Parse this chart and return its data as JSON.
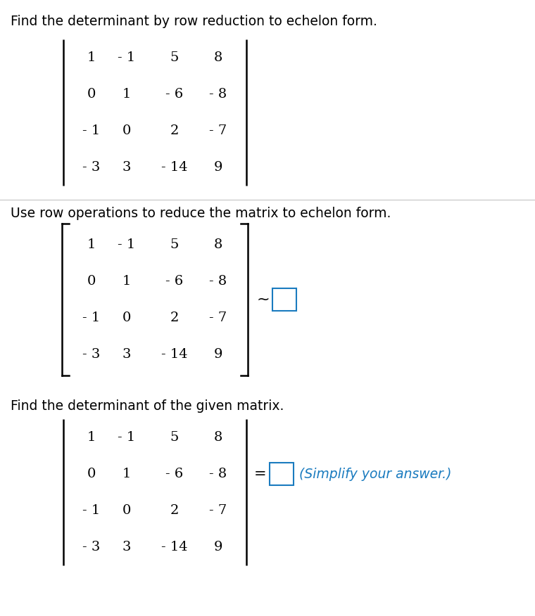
{
  "title1": "Find the determinant by row reduction to echelon form.",
  "title2": "Use row operations to reduce the matrix to echelon form.",
  "title3": "Find the determinant of the given matrix.",
  "matrix_rows": [
    [
      "1",
      "- 1",
      "5",
      "8"
    ],
    [
      "0",
      "1",
      "- 6",
      "- 8"
    ],
    [
      "- 1",
      "0",
      "2",
      "- 7"
    ],
    [
      "- 3",
      "3",
      "- 14",
      "9"
    ]
  ],
  "bg_color": "#ffffff",
  "text_color": "#000000",
  "blue_color": "#1a7bbf",
  "separator_color": "#cccccc",
  "font_size_title": 13.5,
  "font_size_matrix": 14
}
